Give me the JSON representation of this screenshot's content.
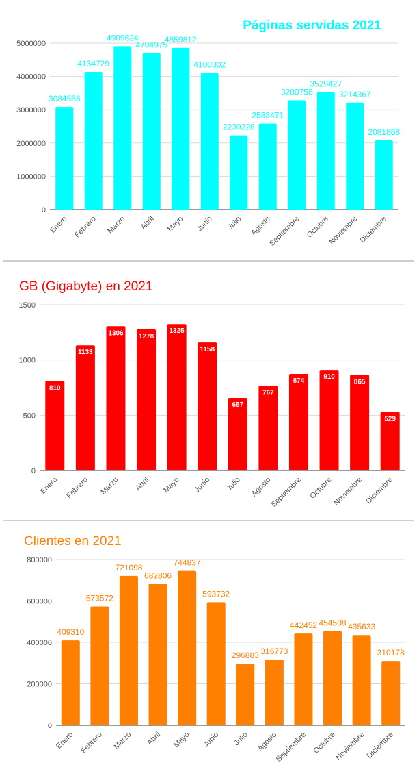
{
  "chart_data": [
    {
      "type": "bar",
      "title": "Páginas servidas 2021",
      "color": "#00ffff",
      "label_color": "#00ffff",
      "categories": [
        "Enero",
        "Febrero",
        "Marzo",
        "Abril",
        "Mayo",
        "Junio",
        "Julio",
        "Agosto",
        "Septiembre",
        "Octubre",
        "Noviembre",
        "Diciembre"
      ],
      "values": [
        3084558,
        4134729,
        4909624,
        4704975,
        4859812,
        4100302,
        2230228,
        2583471,
        3280758,
        3529427,
        3214367,
        2081868
      ],
      "ylim": [
        0,
        5000000
      ],
      "yticks": [
        0,
        1000000,
        2000000,
        3000000,
        4000000,
        5000000
      ],
      "ytick_labels": [
        "0",
        "1000000",
        "2000000",
        "3000000",
        "4000000",
        "5000000"
      ],
      "xlabel": "",
      "ylabel": "",
      "legend": "none"
    },
    {
      "type": "bar",
      "title": "GB (Gigabyte) en 2021",
      "color": "#ff0000",
      "label_color": "#ffffff",
      "categories": [
        "Enero",
        "Febrero",
        "Marzo",
        "Abril",
        "Mayo",
        "Junio",
        "Julio",
        "Agosto",
        "Septiembre",
        "Octubre",
        "Noviembre",
        "Diciembre"
      ],
      "values": [
        810,
        1133,
        1306,
        1278,
        1325,
        1158,
        657,
        767,
        874,
        910,
        865,
        529
      ],
      "ylim": [
        0,
        1500
      ],
      "yticks": [
        0,
        500,
        1000,
        1500
      ],
      "ytick_labels": [
        "0",
        "500",
        "1000",
        "1500"
      ],
      "xlabel": "",
      "ylabel": "",
      "legend": "none"
    },
    {
      "type": "bar",
      "title": "Clientes en 2021",
      "color": "#ff8000",
      "label_color": "#ff8000",
      "categories": [
        "Enero",
        "Febrero",
        "Marzo",
        "Abril",
        "Mayo",
        "Junio",
        "Julio",
        "Agosto",
        "Septiembre",
        "Octubre",
        "Noviembre",
        "Diciembre"
      ],
      "values": [
        409310,
        573572,
        721098,
        682806,
        744837,
        593732,
        296883,
        316773,
        442452,
        454508,
        435633,
        310178
      ],
      "ylim": [
        0,
        800000
      ],
      "yticks": [
        0,
        200000,
        400000,
        600000,
        800000
      ],
      "ytick_labels": [
        "0",
        "200000",
        "400000",
        "600000",
        "800000"
      ],
      "xlabel": "",
      "ylabel": "",
      "legend": "none"
    }
  ]
}
